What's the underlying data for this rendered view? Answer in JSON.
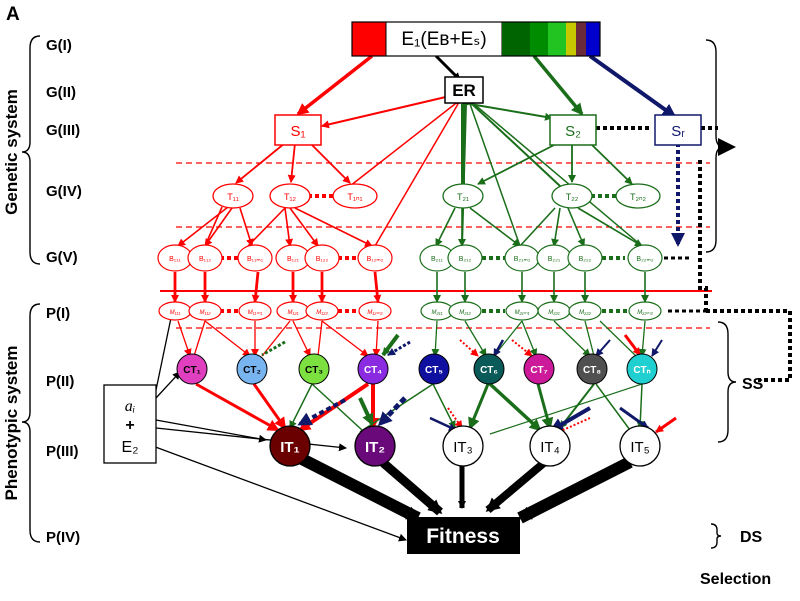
{
  "panel_label": "A",
  "top_bar": {
    "label": "E₁(Eʙ+Eₛ)",
    "left_colors": [
      "#ff0000"
    ],
    "right_colors": [
      "#006400",
      "#008c00",
      "#22c422",
      "#c8c800",
      "#6b2a3a",
      "#0000cc"
    ]
  },
  "levels": {
    "genetic": [
      "G(I)",
      "G(II)",
      "G(III)",
      "G(IV)",
      "G(V)"
    ],
    "phenotypic": [
      "P(I)",
      "P(II)",
      "P(III)",
      "P(IV)"
    ]
  },
  "system_labels": {
    "genetic": "Genetic system",
    "phenotypic": "Phenotypic system"
  },
  "nodes": {
    "er": "ER",
    "s1": "S₁",
    "s2": "S₂",
    "sr": "Sᵣ",
    "t11": "T₁₁",
    "t12": "T₁₂",
    "t1n1": "T₁ₙ₁",
    "t21": "T₂₁",
    "t22": "T₂₂",
    "t2n2": "T₂ₙ₂",
    "b_red": [
      "B₁₁₁",
      "B₁₁₂",
      "B₁₁ₘ₁",
      "B₁₂₁",
      "B₁₂₂",
      "B₁₂ₘ₂"
    ],
    "b_green": [
      "B₂₁₁",
      "B₂₁₂",
      "B₂₁ₘ₁",
      "B₂₂₁",
      "B₂₂₂",
      "B₂₂ₘ₂"
    ],
    "m_red": [
      "M₁₁₁",
      "M₁₁₂",
      "M₁₁ₘ₁",
      "M₁₂₁",
      "M₁₂₂",
      "M₁₂ₘ₂"
    ],
    "m_green": [
      "M₂₁₁",
      "M₂₁₂",
      "M₂₁ₘ₁",
      "M₂₂₁",
      "M₂₂₂",
      "M₂₂ₘ₂"
    ],
    "ct": [
      "CT₁",
      "CT₂",
      "CT₃",
      "CT₄",
      "CT₅",
      "CT₆",
      "CT₇",
      "CT₈",
      "CTₙ"
    ],
    "ct_colors": [
      "#e040c0",
      "#78b4f0",
      "#7ce040",
      "#8a2be2",
      "#1010a0",
      "#0a5a5a",
      "#cc1a9a",
      "#505050",
      "#20d0d0"
    ],
    "ct_text_colors": [
      "#000000",
      "#000000",
      "#000000",
      "#ffffff",
      "#ffffff",
      "#ffffff",
      "#ffffff",
      "#ffffff",
      "#ffffff"
    ],
    "it": [
      "IT₁",
      "IT₂",
      "IT₃",
      "IT₄",
      "IT₅"
    ],
    "it_colors": [
      "#6b0000",
      "#6a0a7a",
      "#ffffff",
      "#ffffff",
      "#ffffff"
    ],
    "it_text_colors": [
      "#ffffff",
      "#ffffff",
      "#000000",
      "#000000",
      "#000000"
    ],
    "env_line1": "aᵢ",
    "env_line2": "+",
    "env_line3": "E₂",
    "fitness": "Fitness"
  },
  "right_labels": {
    "ss": "SS",
    "ds": "DS",
    "selection": "Selection"
  },
  "colors": {
    "red_branch": "#ff0000",
    "green_branch": "#1a6e1a",
    "navy": "#10186a",
    "black": "#000000"
  }
}
